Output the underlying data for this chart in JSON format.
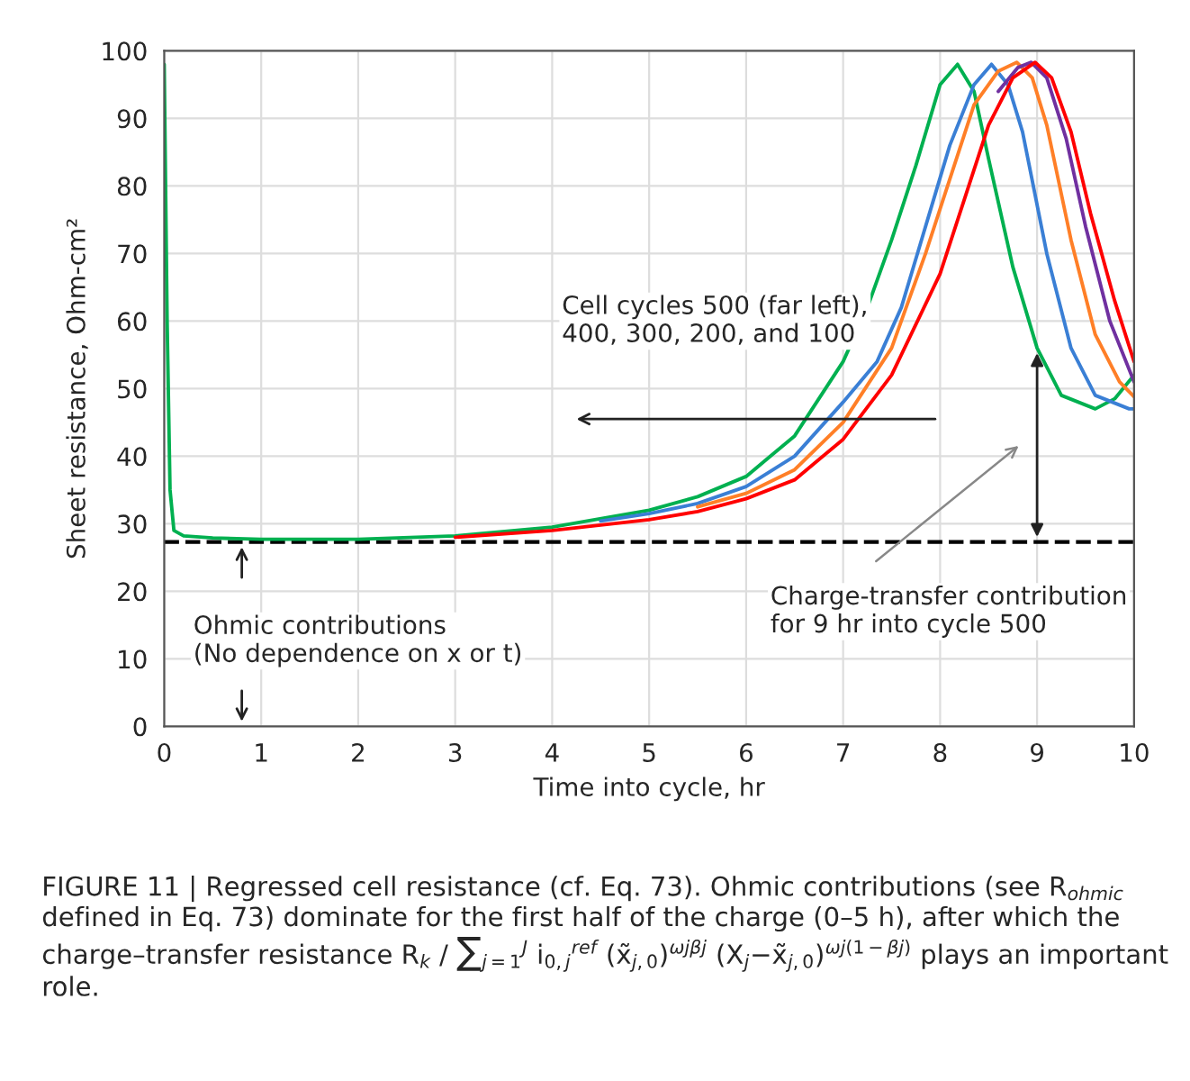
{
  "chart_data": {
    "type": "line",
    "xlabel": "Time into cycle, hr",
    "ylabel": "Sheet resistance, Ohm-cm²",
    "xlim": [
      0,
      10
    ],
    "ylim": [
      0,
      100
    ],
    "xticks": [
      0,
      1,
      2,
      3,
      4,
      5,
      6,
      7,
      8,
      9,
      10
    ],
    "yticks": [
      0,
      10,
      20,
      30,
      40,
      50,
      60,
      70,
      80,
      90,
      100
    ],
    "grid": true,
    "marker": "none",
    "line_style": "solid",
    "series": [
      {
        "color": "#00b050",
        "x": [
          0,
          0.03,
          0.06,
          0.1,
          0.2,
          0.5,
          1,
          2,
          3,
          4,
          5,
          5.5,
          6,
          6.5,
          7,
          7.25,
          7.5,
          7.75,
          8,
          8.18,
          8.35,
          8.5,
          8.75,
          9,
          9.25,
          9.6,
          9.8,
          10
        ],
        "values": [
          98,
          60,
          35,
          29,
          28.2,
          27.9,
          27.7,
          27.7,
          28.2,
          29.5,
          32,
          34,
          37,
          43,
          54,
          62,
          72,
          83,
          95,
          98,
          94,
          84,
          68,
          56,
          49,
          47,
          48.5,
          52
        ]
      },
      {
        "color": "#3a7fd5",
        "x": [
          4.5,
          5,
          5.5,
          6,
          6.5,
          7,
          7.35,
          7.6,
          7.85,
          8.1,
          8.35,
          8.53,
          8.7,
          8.85,
          9.1,
          9.35,
          9.6,
          9.95,
          10
        ],
        "values": [
          30.4,
          31.5,
          33,
          35.5,
          40,
          48,
          54,
          62,
          74,
          86,
          95,
          98,
          95,
          88,
          70,
          56,
          49,
          47,
          47
        ]
      },
      {
        "color": "#ff7f27",
        "x": [
          5.5,
          6,
          6.5,
          7,
          7.5,
          7.85,
          8.1,
          8.35,
          8.6,
          8.79,
          8.95,
          9.1,
          9.35,
          9.6,
          9.85,
          10
        ],
        "values": [
          32.5,
          34.5,
          38,
          45,
          56,
          70,
          81,
          92,
          97,
          98.3,
          96,
          89,
          72,
          58,
          51,
          48.8
        ]
      },
      {
        "color": "#7030a0",
        "x": [
          8.6,
          8.8,
          8.94,
          9.1,
          9.3,
          9.5,
          9.75,
          10
        ],
        "values": [
          94,
          97.5,
          98.3,
          96,
          87,
          74,
          60,
          51
        ]
      },
      {
        "color": "#ff0000",
        "x": [
          3,
          4,
          5,
          5.5,
          6,
          6.5,
          7,
          7.5,
          8,
          8.25,
          8.5,
          8.75,
          8.98,
          9.15,
          9.35,
          9.55,
          9.8,
          10
        ],
        "values": [
          28,
          29,
          30.6,
          31.8,
          33.7,
          36.5,
          42.5,
          52,
          67,
          78,
          89,
          96,
          98.3,
          96,
          88,
          76,
          63,
          54
        ]
      }
    ],
    "ref_lines": [
      {
        "axis": "y",
        "value": 27.3,
        "color": "#000000",
        "line_style": "dashed"
      }
    ],
    "annotations": [
      "Cell cycles 500 (far left),\n400, 300, 200, and 100",
      {
        "text": "Ohmic contributions\n(No dependence on x or t)",
        "x": 0.8,
        "y": 27.3
      },
      "Charge-transfer contribution\nfor 9 hr into cycle 500",
      "FIGURE 11 | Regressed cell resistance (cf. Eq. 73). Ohmic contributions (see R$_{ohmic}$ defined in Eq. 73) dominate for the first half of the charge (0–5 h), after which the charge–transfer resistance R$_{k}$ / ∑$_{j=1}$$^{J}$ i$_{0,j}$$^{ref}$ (x̃$_{j,0}$)$^{ωjβj}$ (X$_{j}$−x̃$_{j,0}$)$^{ωj(1−βj)}$ plays an important role."
    ]
  }
}
